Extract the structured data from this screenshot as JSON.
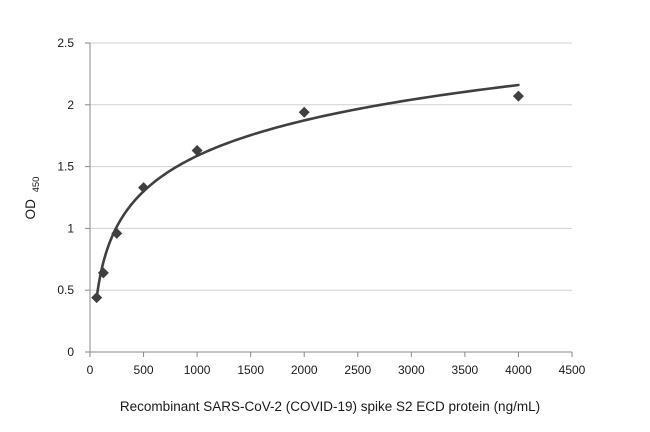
{
  "chart_data": {
    "type": "scatter",
    "title": "",
    "xlabel": "Recombinant SARS-CoV-2 (COVID-19) spike S2 ECD protein (ng/mL)",
    "ylabel_main": "OD",
    "ylabel_sub": "450",
    "xlim": [
      0,
      4500
    ],
    "ylim": [
      0,
      2.5
    ],
    "x_ticks": [
      0,
      500,
      1000,
      1500,
      2000,
      2500,
      3000,
      3500,
      4000,
      4500
    ],
    "y_ticks": [
      0,
      0.5,
      1,
      1.5,
      2,
      2.5
    ],
    "x_tick_labels": [
      "0",
      "500",
      "1000",
      "1500",
      "2000",
      "2500",
      "3000",
      "3500",
      "4000",
      "4500"
    ],
    "y_tick_labels": [
      "0",
      "0.5",
      "1",
      "1.5",
      "2",
      "2.5"
    ],
    "grid": "horizontal",
    "legend": "none",
    "series": [
      {
        "marker": "diamond",
        "x": [
          62.5,
          125,
          250,
          500,
          1000,
          2000,
          4000
        ],
        "y": [
          0.44,
          0.64,
          0.96,
          1.33,
          1.63,
          1.94,
          2.07
        ]
      }
    ],
    "fit_line": {
      "type": "logarithmic",
      "x_range": [
        62.5,
        4000
      ],
      "y_range": [
        0.44,
        2.16
      ]
    },
    "colors": {
      "marker": "#404040",
      "curve": "#404040",
      "grid": "#d0d0d0",
      "axis": "#8a8a8a"
    }
  }
}
